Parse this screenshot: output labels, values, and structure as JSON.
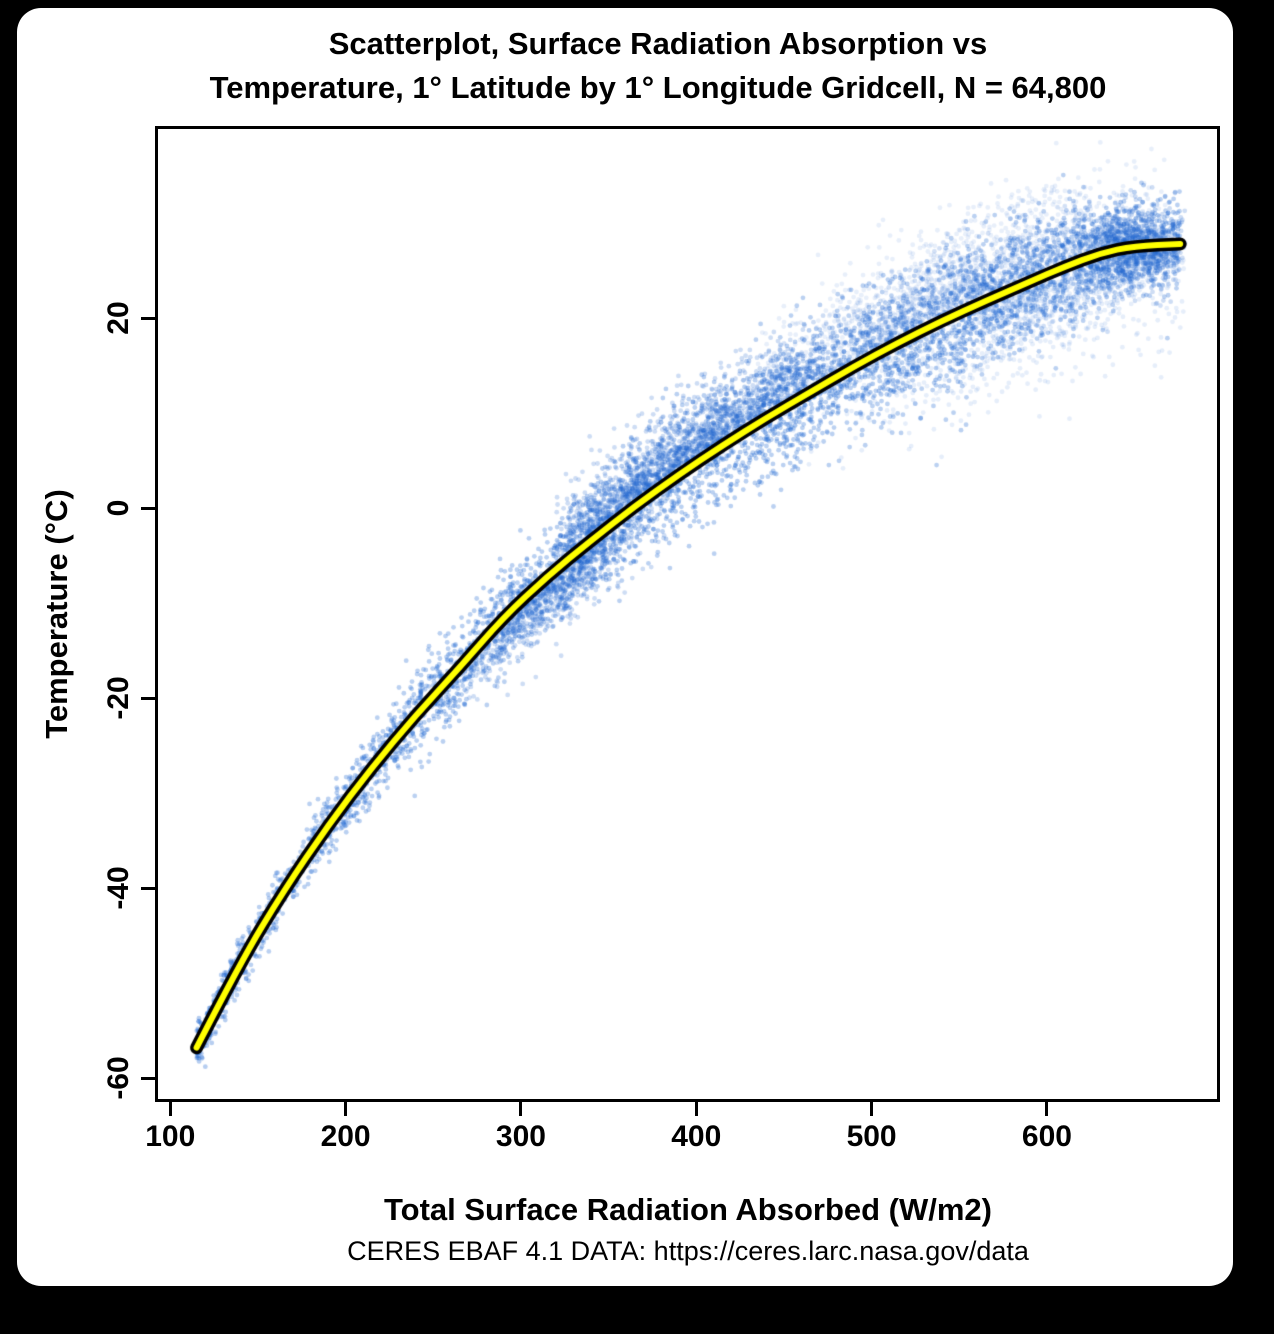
{
  "figure": {
    "background_color": "#000000",
    "card_background_color": "#ffffff",
    "title_line1": "Scatterplot, Surface Radiation Absorption vs",
    "title_line2": "Temperature, 1° Latitude by 1° Longitude Gridcell, N = 64,800",
    "caption": "CERES EBAF 4.1 DATA: https://ceres.larc.nasa.gov/data"
  },
  "chart_data": {
    "type": "scatter",
    "title": "Scatterplot, Surface Radiation Absorption vs Temperature, 1° Latitude by 1° Longitude Gridcell, N = 64,800",
    "xlabel": "Total Surface Radiation Absorbed (W/m2)",
    "ylabel": "Temperature (°C)",
    "n_points": 64800,
    "n_points_label": "N = 64,800",
    "x_ticks": [
      100,
      200,
      300,
      400,
      500,
      600
    ],
    "y_ticks": [
      20,
      0,
      -20,
      -40,
      -60
    ],
    "xlim": [
      93,
      697
    ],
    "ylim": [
      -62.2,
      39.9
    ],
    "grid": false,
    "legend": "none",
    "point_color": "#1e66cf",
    "trend_line_color": "#ffff00",
    "trend_outline_color": "#000000",
    "trend": {
      "x": [
        115,
        140,
        165,
        190,
        215,
        240,
        265,
        290,
        315,
        340,
        365,
        390,
        415,
        440,
        465,
        490,
        515,
        540,
        565,
        590,
        610,
        630,
        650,
        676
      ],
      "y": [
        -56.8,
        -47.8,
        -40.2,
        -33.4,
        -27.3,
        -21.8,
        -16.8,
        -11.5,
        -7.2,
        -3.4,
        0.2,
        3.5,
        6.6,
        9.5,
        12.2,
        14.9,
        17.4,
        19.7,
        21.8,
        23.8,
        25.4,
        26.8,
        27.6,
        27.8
      ]
    },
    "scatter_model": {
      "seed": 1337,
      "dot_radius": 2.4,
      "sigma_profile": {
        "x": [
          115,
          200,
          280,
          350,
          450,
          550,
          640,
          676
        ],
        "sigma": [
          1.0,
          1.6,
          2.4,
          3.0,
          3.2,
          3.6,
          2.8,
          2.4
        ]
      },
      "components": [
        {
          "name": "core-band",
          "n": 5200,
          "x": {
            "kind": "segments",
            "segments": [
              [
                115,
                180,
                0.06
              ],
              [
                180,
                280,
                0.16
              ],
              [
                280,
                430,
                0.27
              ],
              [
                430,
                580,
                0.31
              ],
              [
                580,
                676,
                0.2
              ]
            ]
          },
          "dy": {
            "kind": "profile"
          },
          "alpha": 0.3
        },
        {
          "name": "above-bulge",
          "n": 1500,
          "x": {
            "kind": "normal",
            "mean": 385,
            "sd": 45,
            "min": 320,
            "max": 480
          },
          "dy": {
            "kind": "halfnormal",
            "sd": 3.2,
            "offset": 0.4,
            "sign": 1
          },
          "alpha": 0.22
        },
        {
          "name": "below-bulge",
          "n": 800,
          "x": {
            "kind": "normal",
            "mean": 318,
            "sd": 28,
            "min": 268,
            "max": 382
          },
          "dy": {
            "kind": "halfnormal",
            "sd": 2.8,
            "offset": 0.4,
            "sign": -1
          },
          "alpha": 0.22
        },
        {
          "name": "high-cloud",
          "n": 1500,
          "x": {
            "kind": "normal",
            "mean": 540,
            "sd": 60,
            "min": 430,
            "max": 668
          },
          "dy": {
            "kind": "halfnormal",
            "sd": 4.0,
            "offset": 0.8,
            "sign": 1
          },
          "alpha": 0.1
        },
        {
          "name": "below-tail",
          "n": 1100,
          "x": {
            "kind": "normal",
            "mean": 595,
            "sd": 55,
            "min": 455,
            "max": 678
          },
          "dy": {
            "kind": "halfnormal",
            "sd": 4.2,
            "offset": 0.5,
            "sign": -1
          },
          "alpha": 0.11
        },
        {
          "name": "end-blob",
          "n": 850,
          "x": {
            "kind": "normal",
            "mean": 650,
            "sd": 16,
            "min": 604,
            "max": 679
          },
          "dy": {
            "kind": "normal",
            "sd": 2.0
          },
          "alpha": 0.22
        },
        {
          "name": "low-tail",
          "n": 350,
          "x": {
            "kind": "halfnormal",
            "base": 115,
            "sd": 22,
            "min": 112,
            "max": 190
          },
          "dy": {
            "kind": "normal",
            "sd": 1.1
          },
          "alpha": 0.32
        }
      ]
    }
  }
}
